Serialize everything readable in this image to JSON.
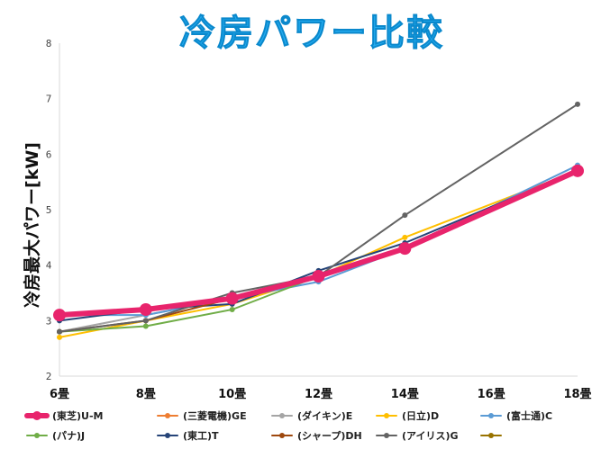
{
  "chart_data": {
    "type": "line",
    "title": "冷房パワー比較",
    "xlabel": "",
    "ylabel": "冷房最大パワー[kW]",
    "categories": [
      "6畳",
      "8畳",
      "10畳",
      "12畳",
      "14畳",
      "16畳",
      "18畳"
    ],
    "yticks": [
      "2",
      "3",
      "4",
      "5",
      "6",
      "7",
      "8"
    ],
    "ylim": [
      2,
      8
    ],
    "grid": false,
    "legend_position": "bottom",
    "series": [
      {
        "name": "(東芝)U-M",
        "color": "#e8246c",
        "emphasis": true,
        "values": [
          3.1,
          3.2,
          3.4,
          3.8,
          4.3,
          null,
          5.7
        ]
      },
      {
        "name": "(三菱電機)GE",
        "color": "#ee7d31",
        "values": [
          3.1,
          3.2,
          3.4,
          3.8,
          4.3,
          null,
          5.7
        ]
      },
      {
        "name": "(ダイキン)E",
        "color": "#a5a5a5",
        "values": [
          2.8,
          3.1,
          3.4,
          3.8,
          4.3,
          null,
          5.7
        ]
      },
      {
        "name": "(日立)D",
        "color": "#ffbf00",
        "values": [
          2.7,
          3.0,
          3.3,
          3.8,
          4.5,
          null,
          5.7
        ]
      },
      {
        "name": "(富士通)C",
        "color": "#5b9bd5",
        "values": [
          3.1,
          3.1,
          3.4,
          3.7,
          4.3,
          null,
          5.8
        ]
      },
      {
        "name": "(パナ)J",
        "color": "#70ad47",
        "values": [
          2.8,
          2.9,
          3.2,
          3.8,
          4.3,
          null,
          5.7
        ]
      },
      {
        "name": "(東工)T",
        "color": "#264478",
        "values": [
          3.0,
          3.2,
          3.3,
          3.9,
          4.4,
          null,
          5.7
        ]
      },
      {
        "name": "(シャープ)DH",
        "color": "#9e480e",
        "values": [
          2.8,
          3.0,
          3.4,
          3.8,
          4.3,
          null,
          5.7
        ]
      },
      {
        "name": "(アイリス)G",
        "color": "#636363",
        "values": [
          2.8,
          3.0,
          3.5,
          3.8,
          4.9,
          null,
          6.9
        ]
      },
      {
        "name": "",
        "color": "#997300",
        "values": [
          null,
          null,
          null,
          null,
          null,
          null,
          null
        ]
      }
    ]
  }
}
